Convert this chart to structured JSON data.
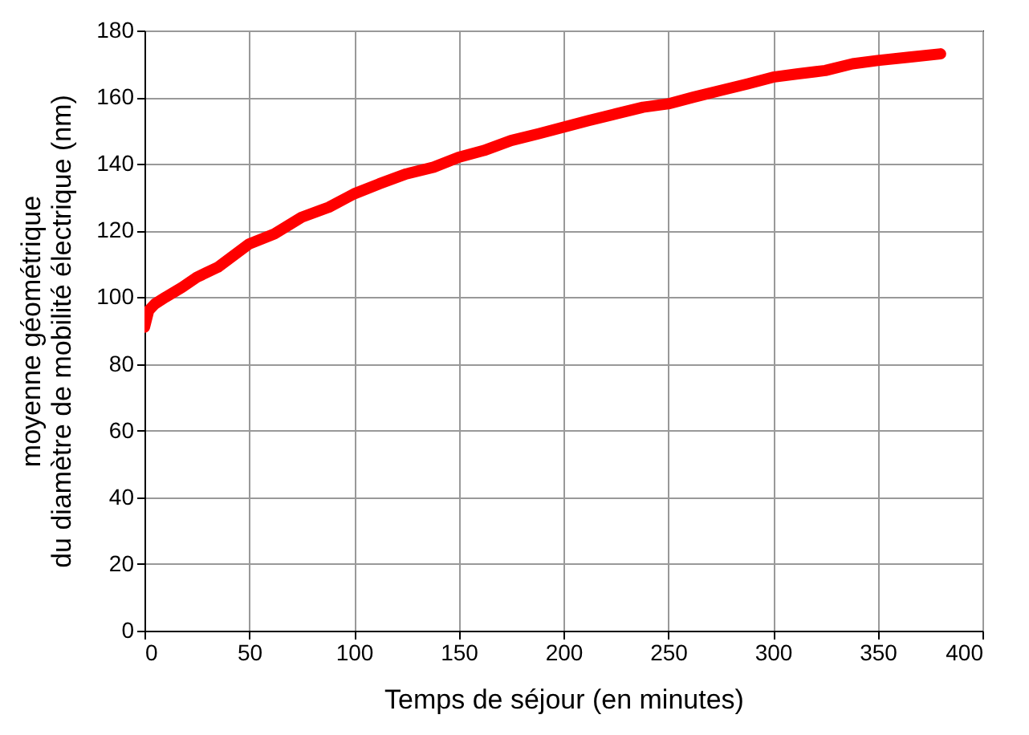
{
  "chart_data": {
    "type": "line",
    "xlabel": "Temps de séjour (en minutes)",
    "ylabel": "moyenne géométrique\ndu diamètre de mobilité électrique (nm)",
    "x": [
      0,
      2,
      5,
      10,
      18,
      25,
      35,
      50,
      62,
      75,
      88,
      100,
      112,
      125,
      138,
      150,
      162,
      175,
      188,
      200,
      212,
      225,
      238,
      250,
      262,
      275,
      288,
      300,
      312,
      325,
      338,
      350,
      365,
      380
    ],
    "series": [
      {
        "color": "#ff0000",
        "values": [
          91,
          96,
          98,
          100,
          103,
          106,
          109,
          116,
          119,
          124,
          127,
          131,
          134,
          137,
          139,
          142,
          144,
          147,
          149,
          151,
          153,
          155,
          157,
          158,
          160,
          162,
          164,
          166,
          167,
          168,
          170,
          171,
          172,
          173
        ]
      }
    ],
    "xlim": [
      0,
      400
    ],
    "xticks": [
      0,
      50,
      100,
      150,
      200,
      250,
      300,
      350,
      400
    ],
    "ylim": [
      0,
      180
    ],
    "yticks": [
      0,
      20,
      40,
      60,
      80,
      100,
      120,
      140,
      160,
      180
    ],
    "grid": true,
    "line_style": "solid"
  }
}
